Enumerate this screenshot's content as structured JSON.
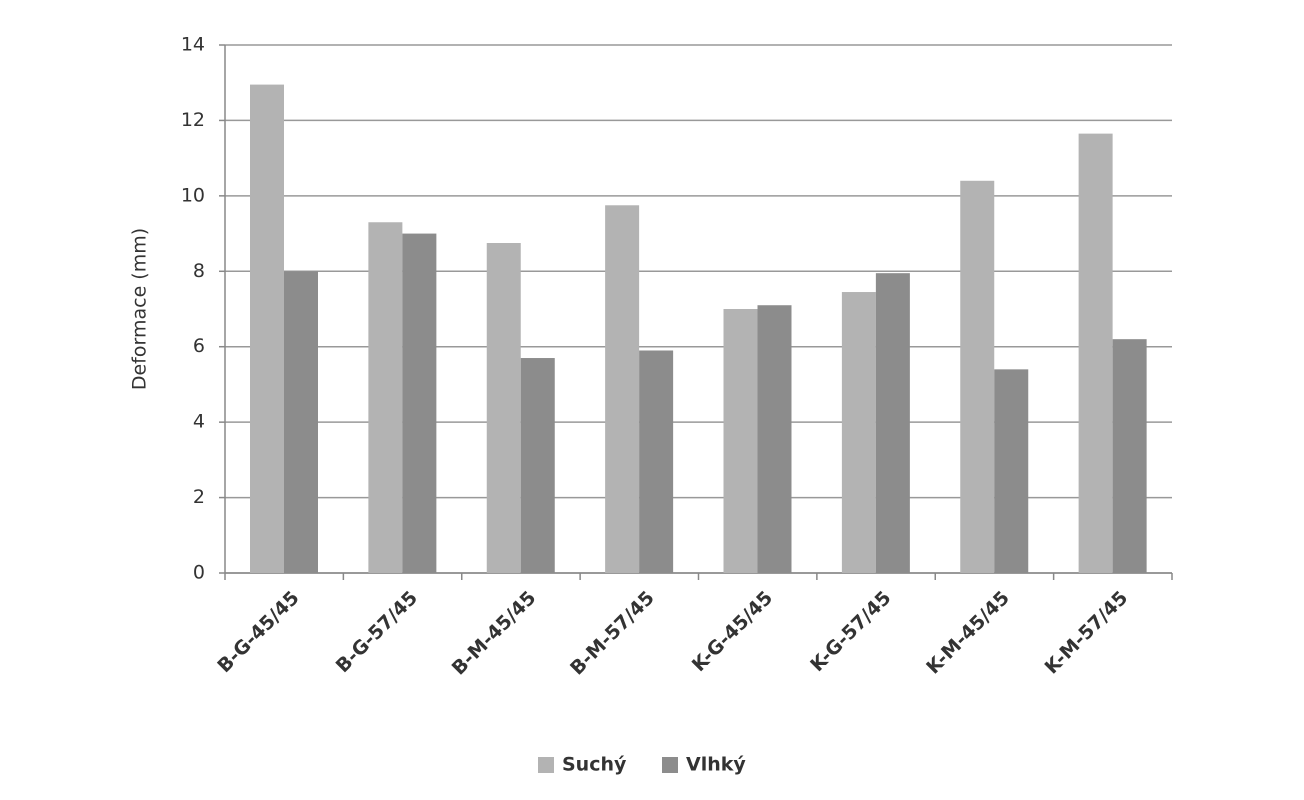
{
  "chart_data": {
    "type": "bar",
    "y_label": "Deformace (mm)",
    "categories": [
      "B-G-45/45",
      "B-G-57/45",
      "B-M-45/45",
      "B-M-57/45",
      "K-G-45/45",
      "K-G-57/45",
      "K-M-45/45",
      "K-M-57/45"
    ],
    "series": [
      {
        "name": "Suchý",
        "color": "#b3b3b3",
        "values": [
          12.95,
          9.3,
          8.75,
          9.75,
          7.0,
          7.45,
          10.4,
          11.65
        ]
      },
      {
        "name": "Vlhký",
        "color": "#8c8c8c",
        "values": [
          8.0,
          9.0,
          5.7,
          5.9,
          7.1,
          7.95,
          5.4,
          6.2
        ]
      }
    ],
    "ylim": [
      0,
      14
    ],
    "yticks": [
      0,
      2,
      4,
      6,
      8,
      10,
      12,
      14
    ],
    "grid": true,
    "legend": "bottom"
  }
}
